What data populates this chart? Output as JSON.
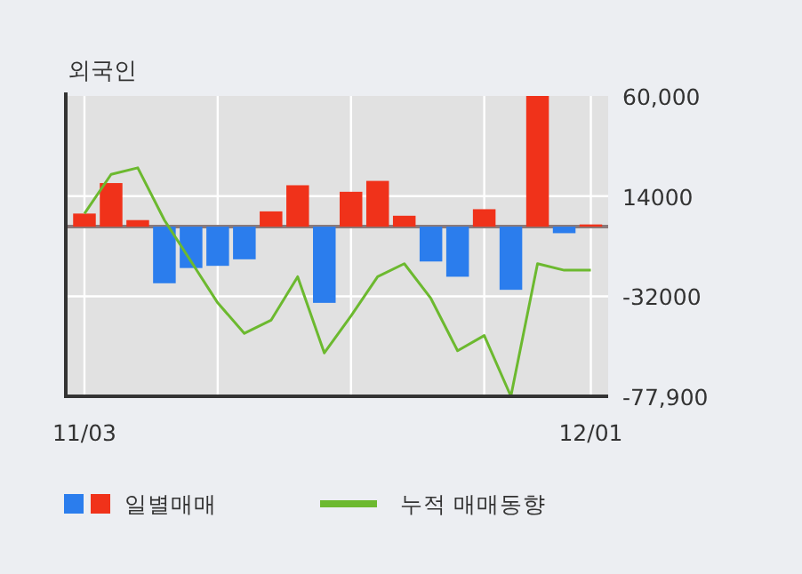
{
  "chart_data": {
    "type": "bar",
    "title": "외국인",
    "categories": [
      "11/03",
      null,
      null,
      null,
      null,
      null,
      null,
      null,
      null,
      null,
      null,
      null,
      null,
      null,
      null,
      null,
      null,
      null,
      null,
      "12/01"
    ],
    "series": [
      {
        "name": "일별매매",
        "colors": [
          "#f0321a",
          "#f0321a",
          "#f0321a",
          "#2b7ded",
          "#2b7ded",
          "#2b7ded",
          "#2b7ded",
          "#f0321a",
          "#f0321a",
          "#2b7ded",
          "#f0321a",
          "#f0321a",
          "#f0321a",
          "#2b7ded",
          "#2b7ded",
          "#f0321a",
          "#2b7ded",
          "#f0321a",
          "#2b7ded",
          "#f0321a"
        ],
        "values": [
          6000,
          20000,
          3000,
          -26000,
          -19000,
          -18000,
          -15000,
          7000,
          19000,
          -35000,
          16000,
          21000,
          5000,
          -16000,
          -23000,
          8000,
          -29000,
          60000,
          -3000,
          1000
        ]
      },
      {
        "name": "누적 매매동향",
        "type": "line",
        "color": "#6cb92f",
        "values": [
          6000,
          24000,
          27000,
          3000,
          -16000,
          -35000,
          -49000,
          -43000,
          -23000,
          -58000,
          -41000,
          -23000,
          -17000,
          -33000,
          -57000,
          -50000,
          -77900,
          -17000,
          -20000,
          -20000
        ]
      }
    ],
    "ylim": [
      -77900,
      60000
    ],
    "yticks": [
      {
        "value": 60000,
        "label": "60,000"
      },
      14000,
      -32000,
      {
        "value": -77900,
        "label": "-77,900"
      }
    ],
    "grid": true,
    "legend": "bottom",
    "marker": "none",
    "line_style": "solid"
  }
}
